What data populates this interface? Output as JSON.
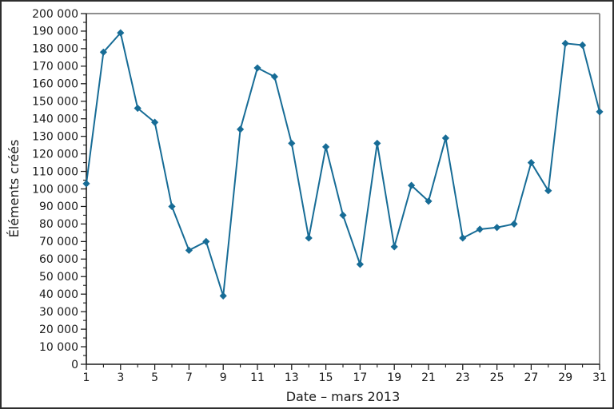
{
  "chart_data": {
    "type": "line",
    "title": "",
    "xlabel": "Date – mars 2013",
    "ylabel": "Éléments créés",
    "x": [
      1,
      2,
      3,
      4,
      5,
      6,
      7,
      8,
      9,
      10,
      11,
      12,
      13,
      14,
      15,
      16,
      17,
      18,
      19,
      20,
      21,
      22,
      23,
      24,
      25,
      26,
      27,
      28,
      29,
      30,
      31
    ],
    "values": [
      103000,
      178000,
      189000,
      146000,
      138000,
      90000,
      65000,
      70000,
      39000,
      134000,
      169000,
      164000,
      126000,
      72000,
      124000,
      85000,
      57000,
      126000,
      67000,
      102000,
      93000,
      129000,
      72000,
      77000,
      78000,
      80000,
      115000,
      99000,
      183000,
      182000,
      144000
    ],
    "xlim": [
      1,
      31
    ],
    "ylim": [
      0,
      200000
    ],
    "x_major_ticks": [
      1,
      3,
      5,
      7,
      9,
      11,
      13,
      15,
      17,
      19,
      21,
      23,
      25,
      27,
      29,
      31
    ],
    "x_minor_ticks": [
      2,
      4,
      6,
      8,
      10,
      12,
      14,
      16,
      18,
      20,
      22,
      24,
      26,
      28,
      30
    ],
    "y_major_tick_step": 10000,
    "y_minor_tick_step": 5000,
    "grid": false,
    "legend": false,
    "marker": "diamond",
    "line_color": "#176c96",
    "axis_color": "#1a1a1a",
    "secondary_spine_color": "#8e8e8e",
    "background_color": "#ffffff",
    "y_tick_label_thousands_separator": " "
  }
}
